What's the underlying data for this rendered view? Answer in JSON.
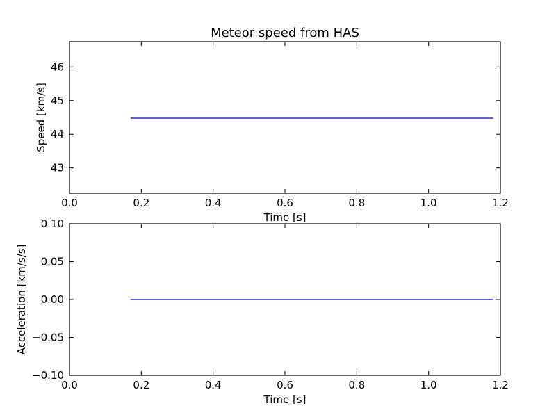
{
  "chart_data": [
    {
      "type": "line",
      "title": "Meteor speed from  HAS",
      "xlabel": "Time [s]",
      "ylabel": "Speed [km/s]",
      "xlim": [
        0.0,
        1.2
      ],
      "ylim": [
        42.25,
        46.75
      ],
      "xticks": [
        "0.0",
        "0.2",
        "0.4",
        "0.6",
        "0.8",
        "1.0",
        "1.2"
      ],
      "yticks": [
        "43",
        "44",
        "45",
        "46"
      ],
      "grid": false,
      "series": [
        {
          "x": [
            0.17,
            1.18
          ],
          "y": [
            44.48,
            44.48
          ],
          "color": "#0000ff"
        }
      ]
    },
    {
      "type": "line",
      "title": "",
      "xlabel": "Time [s]",
      "ylabel": "Acceleration [km/s/s]",
      "xlim": [
        0.0,
        1.2
      ],
      "ylim": [
        -0.1,
        0.1
      ],
      "xticks": [
        "0.0",
        "0.2",
        "0.4",
        "0.6",
        "0.8",
        "1.0",
        "1.2"
      ],
      "yticks": [
        "0.10",
        "0.05",
        "0.00",
        "−0.05",
        "−0.10"
      ],
      "grid": false,
      "series": [
        {
          "x": [
            0.17,
            1.18
          ],
          "y": [
            0.0,
            0.0
          ],
          "color": "#0000ff"
        }
      ]
    }
  ]
}
